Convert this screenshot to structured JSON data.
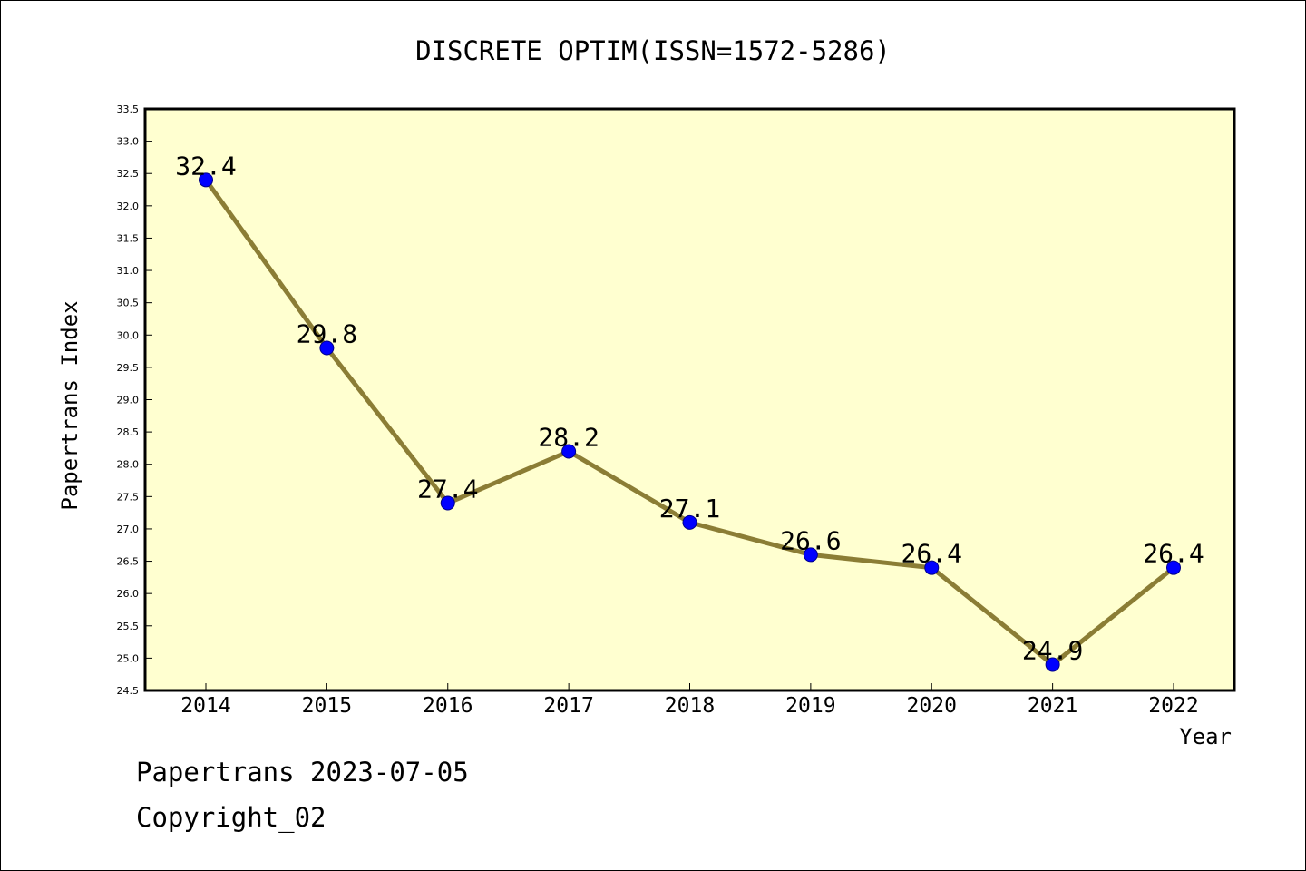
{
  "chart_data": {
    "type": "line",
    "title": "DISCRETE OPTIM(ISSN=1572-5286)",
    "xlabel": "Year",
    "ylabel": "Papertrans Index",
    "categories": [
      "2014",
      "2015",
      "2016",
      "2017",
      "2018",
      "2019",
      "2020",
      "2021",
      "2022"
    ],
    "series": [
      {
        "values": [
          32.4,
          29.8,
          27.4,
          28.2,
          27.1,
          26.6,
          26.4,
          24.9,
          26.4
        ]
      }
    ],
    "data_labels": [
      "32.4",
      "29.8",
      "27.4",
      "28.2",
      "27.1",
      "26.6",
      "26.4",
      "24.9",
      "26.4"
    ],
    "ylim": [
      24.5,
      33.5
    ],
    "yticks": [
      "24.5",
      "25.0",
      "25.5",
      "26.0",
      "26.5",
      "27.0",
      "27.5",
      "28.0",
      "28.5",
      "29.0",
      "29.5",
      "30.0",
      "30.5",
      "31.0",
      "31.5",
      "32.0",
      "32.5",
      "33.0",
      "33.5"
    ],
    "grid": false,
    "colors": {
      "plot_background": "#ffffd0",
      "line": "#8b7d35",
      "marker": "#0000ff",
      "marker_edge": "#00008b"
    }
  },
  "footer": {
    "source": "Papertrans 2023-07-05",
    "copyright": "Copyright_02"
  }
}
